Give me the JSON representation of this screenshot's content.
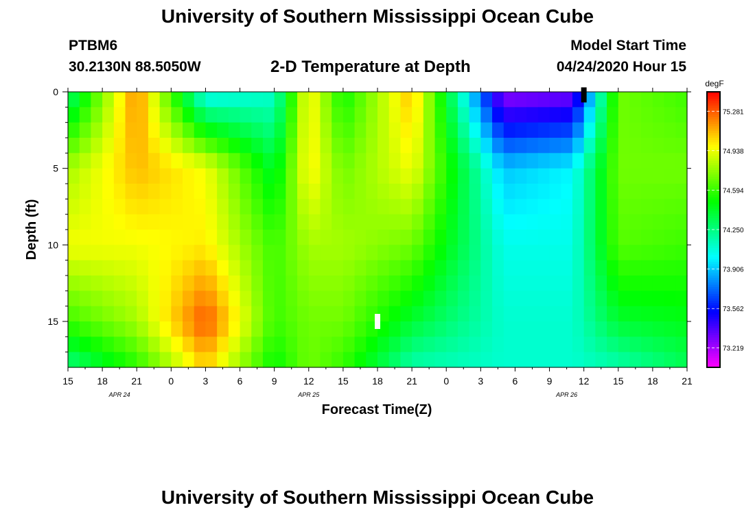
{
  "header": {
    "title_top": "University of Southern Mississippi Ocean Cube",
    "station": "PTBM6",
    "location": "30.2130N 88.5050W",
    "plot_title": "2-D Temperature at Depth",
    "model_start_label": "Model Start Time",
    "model_start_value": "04/24/2020 Hour 15",
    "title_bottom": "University of Southern Mississippi Ocean Cube"
  },
  "chart_data": {
    "type": "heatmap",
    "title": "2-D Temperature at Depth",
    "xlabel": "Forecast Time(Z)",
    "ylabel": "Depth (ft)",
    "x_tick_labels": [
      "15",
      "18",
      "21",
      "0",
      "3",
      "6",
      "9",
      "12",
      "15",
      "18",
      "21",
      "0",
      "3",
      "6",
      "9",
      "12",
      "15",
      "18",
      "21"
    ],
    "date_labels": [
      {
        "label": "APR 24",
        "at_tick": 1.5
      },
      {
        "label": "APR 25",
        "at_tick": 7
      },
      {
        "label": "APR 26",
        "at_tick": 14.5
      }
    ],
    "x_range_hours": [
      0,
      54
    ],
    "y_ticks": [
      0,
      5,
      10,
      15
    ],
    "ylim": [
      0,
      18
    ],
    "y_inverted": true,
    "colorbar": {
      "unit": "degF",
      "labels": [
        "75.281",
        "74.938",
        "74.594",
        "74.250",
        "73.906",
        "73.562",
        "73.219"
      ],
      "range": [
        73.05,
        75.45
      ]
    },
    "nx": 54,
    "ny": 18,
    "profile_hours": [
      0,
      1,
      2,
      3,
      4,
      5,
      6,
      7,
      8,
      9,
      10,
      11,
      12,
      13,
      14,
      15,
      16,
      17,
      18,
      19,
      20,
      21,
      22,
      23,
      24,
      25,
      26,
      27,
      28,
      29,
      30,
      31,
      32,
      33,
      34,
      35,
      36,
      37,
      38,
      39,
      40,
      41,
      42,
      43,
      44,
      45,
      46,
      47,
      48,
      49,
      50,
      51,
      52,
      53,
      54
    ],
    "temperature_samples": {
      "depth_ft": [
        0,
        5,
        10,
        15,
        17.5
      ],
      "hour": [
        0,
        6,
        12,
        18,
        21,
        24,
        30,
        38,
        44,
        48,
        54
      ],
      "degF": [
        [
          74.25,
          75.2,
          74.0,
          74.1,
          75.0,
          74.5,
          75.1,
          73.25,
          73.3,
          74.7,
          74.6
        ],
        [
          74.8,
          75.1,
          74.95,
          74.4,
          75.0,
          74.7,
          74.95,
          73.9,
          74.0,
          74.7,
          74.7
        ],
        [
          74.95,
          74.95,
          75.0,
          74.6,
          74.8,
          74.8,
          74.7,
          74.05,
          74.05,
          74.65,
          74.6
        ],
        [
          74.6,
          74.8,
          75.3,
          74.6,
          74.7,
          74.7,
          74.4,
          74.1,
          74.1,
          74.4,
          74.45
        ],
        [
          74.3,
          74.6,
          75.1,
          74.5,
          74.7,
          74.6,
          74.2,
          74.1,
          74.1,
          74.2,
          74.35
        ]
      ]
    },
    "markers": [
      {
        "hour": 27,
        "depth_ft": 15,
        "color": "#ffffff"
      },
      {
        "hour": 45,
        "depth_ft": 0.2,
        "color": "#000000"
      }
    ]
  }
}
